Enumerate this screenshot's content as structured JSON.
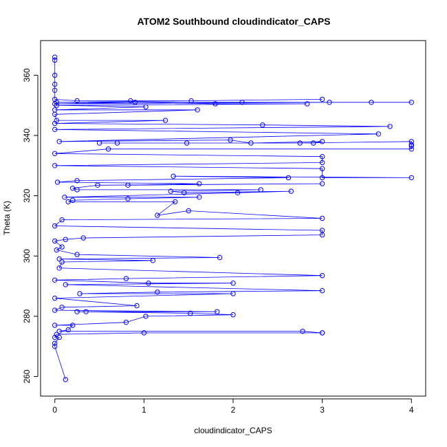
{
  "chart_data": {
    "type": "scatter",
    "title": "ATOM2 Southbound cloudindicator_CAPS",
    "xlabel": "cloudindicator_CAPS",
    "ylabel": "Theta (K)",
    "xlim": [
      -0.16,
      4.16
    ],
    "ylim": [
      253.5,
      371.5
    ],
    "xticks": [
      0,
      1,
      2,
      3,
      4
    ],
    "yticks": [
      260,
      280,
      300,
      320,
      340,
      360
    ],
    "grid": false,
    "legend": "none",
    "connect_points": true,
    "series": [
      {
        "color": "#0000ff",
        "marker": "open-circle",
        "points": [
          [
            0,
            366
          ],
          [
            0,
            365
          ],
          [
            0,
            360
          ],
          [
            0,
            357
          ],
          [
            0,
            355
          ],
          [
            0,
            352
          ],
          [
            0.25,
            351.5
          ],
          [
            0.85,
            351.5
          ],
          [
            1.53,
            351.5
          ],
          [
            3.0,
            352
          ],
          [
            0.02,
            351
          ],
          [
            2.1,
            351
          ],
          [
            3.55,
            351
          ],
          [
            4.0,
            351
          ],
          [
            3.08,
            351
          ],
          [
            0,
            350.5
          ],
          [
            0.9,
            351
          ],
          [
            1.8,
            350.5
          ],
          [
            2.83,
            350.5
          ],
          [
            0.02,
            350
          ],
          [
            1.02,
            349.5
          ],
          [
            0,
            348.5
          ],
          [
            1.6,
            348.5
          ],
          [
            0,
            347
          ],
          [
            0.02,
            345
          ],
          [
            1.24,
            345
          ],
          [
            0,
            344
          ],
          [
            2.33,
            343.5
          ],
          [
            3.76,
            343
          ],
          [
            0,
            342
          ],
          [
            3.63,
            340.5
          ],
          [
            0.05,
            338
          ],
          [
            1.97,
            338.5
          ],
          [
            2.2,
            337.5
          ],
          [
            3.0,
            338
          ],
          [
            2.9,
            337.5
          ],
          [
            0.5,
            337.5
          ],
          [
            0.7,
            337.5
          ],
          [
            1.48,
            337.5
          ],
          [
            2.75,
            337.5
          ],
          [
            4.0,
            338
          ],
          [
            4.0,
            337
          ],
          [
            4.0,
            336.5
          ],
          [
            4.0,
            335.5
          ],
          [
            0.6,
            335.5
          ],
          [
            0,
            334
          ],
          [
            3.0,
            333
          ],
          [
            3.0,
            331
          ],
          [
            0,
            330
          ],
          [
            3.0,
            329
          ],
          [
            3.0,
            326
          ],
          [
            4.0,
            326
          ],
          [
            1.33,
            326.5
          ],
          [
            2.62,
            326
          ],
          [
            0.25,
            325
          ],
          [
            0.03,
            324.5
          ],
          [
            1.62,
            324
          ],
          [
            0.82,
            323.5
          ],
          [
            3.0,
            324
          ],
          [
            0.48,
            323.5
          ],
          [
            0.2,
            322.5
          ],
          [
            0.25,
            322
          ],
          [
            2.31,
            322
          ],
          [
            1.3,
            321.5
          ],
          [
            1.45,
            321
          ],
          [
            2.65,
            321.5
          ],
          [
            2.05,
            321
          ],
          [
            0.11,
            319.5
          ],
          [
            1.62,
            319.5
          ],
          [
            0.82,
            319
          ],
          [
            0.2,
            318.5
          ],
          [
            0.15,
            318
          ],
          [
            1.35,
            318
          ],
          [
            1.15,
            313.5
          ],
          [
            1.5,
            315
          ],
          [
            3.0,
            312.5
          ],
          [
            0.08,
            312
          ],
          [
            0,
            310
          ],
          [
            3.0,
            308.5
          ],
          [
            3.0,
            307
          ],
          [
            0.32,
            306
          ],
          [
            0.12,
            305.5
          ],
          [
            0,
            305
          ],
          [
            0.08,
            303
          ],
          [
            0.02,
            302
          ],
          [
            0.25,
            300.5
          ],
          [
            1.85,
            299.5
          ],
          [
            0.05,
            299
          ],
          [
            1.1,
            298.5
          ],
          [
            0.08,
            298
          ],
          [
            0.05,
            296
          ],
          [
            3.0,
            293.5
          ],
          [
            0.8,
            292.5
          ],
          [
            0,
            292
          ],
          [
            1.05,
            291
          ],
          [
            2.0,
            291
          ],
          [
            0.12,
            290.5
          ],
          [
            3.0,
            288.5
          ],
          [
            1.15,
            288
          ],
          [
            0.28,
            287.5
          ],
          [
            2.0,
            287.5
          ],
          [
            0,
            286
          ],
          [
            0.92,
            283.5
          ],
          [
            0.08,
            283
          ],
          [
            0,
            282
          ],
          [
            1.82,
            281.5
          ],
          [
            0.25,
            281.5
          ],
          [
            0.35,
            281.5
          ],
          [
            1.52,
            281
          ],
          [
            2.0,
            280.5
          ],
          [
            1.02,
            280
          ],
          [
            0.8,
            278
          ],
          [
            0,
            277
          ],
          [
            0.2,
            277
          ],
          [
            0.15,
            275.5
          ],
          [
            0.05,
            275
          ],
          [
            2.78,
            275
          ],
          [
            3.0,
            274.5
          ],
          [
            3.0,
            274.5
          ],
          [
            1.0,
            274.5
          ],
          [
            0.02,
            274
          ],
          [
            0,
            273
          ],
          [
            0.05,
            273
          ],
          [
            0,
            271
          ],
          [
            0,
            270
          ],
          [
            0.12,
            259
          ]
        ]
      }
    ]
  }
}
